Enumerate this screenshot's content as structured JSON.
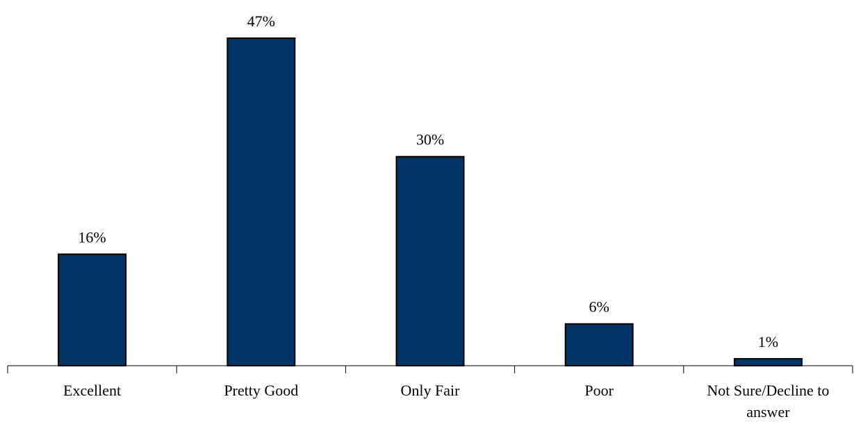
{
  "chart_data": {
    "type": "bar",
    "categories": [
      "Excellent",
      "Pretty Good",
      "Only Fair",
      "Poor",
      "Not Sure/Decline to answer"
    ],
    "category_lines": [
      [
        "Excellent"
      ],
      [
        "Pretty Good"
      ],
      [
        "Only Fair"
      ],
      [
        "Poor"
      ],
      [
        "Not Sure/Decline to",
        "answer"
      ]
    ],
    "values": [
      16,
      47,
      30,
      6,
      1
    ],
    "data_labels": [
      "16%",
      "47%",
      "30%",
      "6%",
      "1%"
    ],
    "unit": "%",
    "ylim": [
      0,
      47
    ],
    "grid": false,
    "colors": {
      "bar_fill": "#003366",
      "bar_stroke": "#000000",
      "axis": "#000000"
    }
  }
}
